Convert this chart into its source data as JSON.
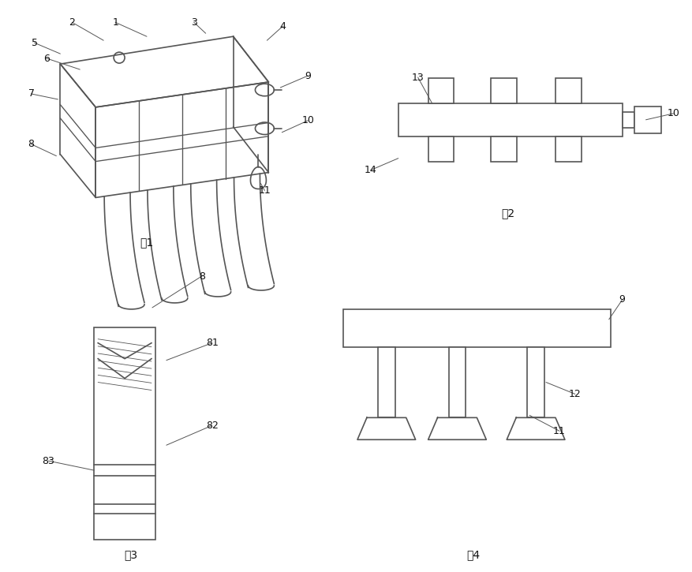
{
  "bg_color": "#ffffff",
  "lc": "#555555",
  "lw": 1.2,
  "fig1_label": "图1",
  "fig2_label": "图2",
  "fig3_label": "图3",
  "fig4_label": "图4",
  "label_fs": 9,
  "caption_fs": 10
}
